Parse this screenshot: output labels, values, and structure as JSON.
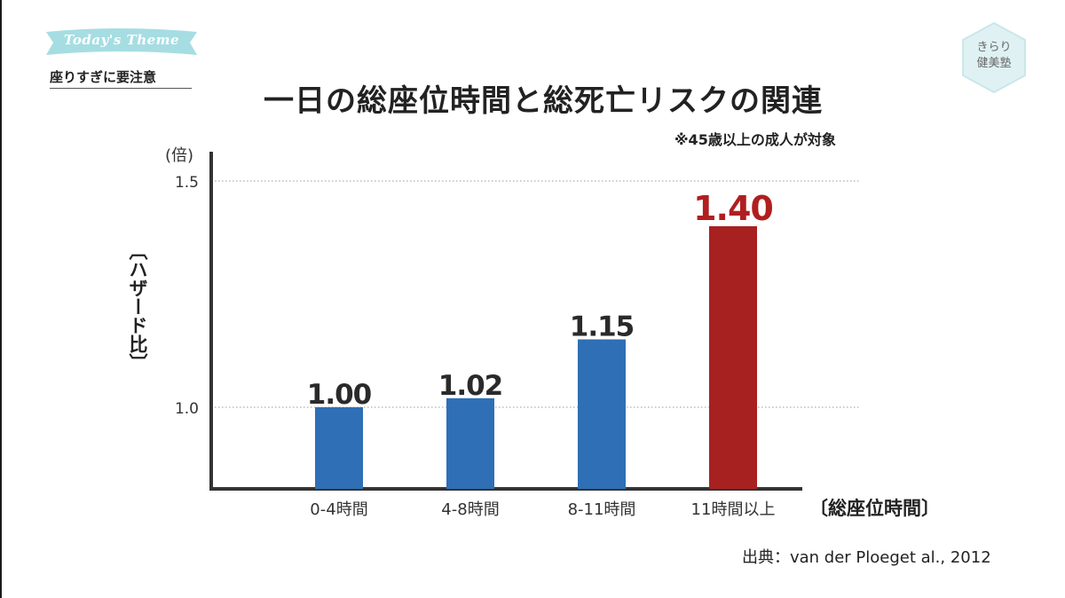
{
  "badge": {
    "title": "Today's Theme",
    "subtitle": "座りすぎに要注意"
  },
  "logo": {
    "line1": "きらり",
    "line2": "健美塾"
  },
  "title": "一日の総座位時間と総死亡リスクの関連",
  "note": "※45歳以上の成人が対象",
  "source": "出典：van der Ploeget al., 2012",
  "colors": {
    "bar_default": "#2f6fb5",
    "bar_highlight": "#a82121",
    "label_highlight": "#b01f1f",
    "axis": "#333333",
    "grid": "#9a9a9a",
    "ribbon": "#a6dde2",
    "logo": "#dff1f3"
  },
  "chart_data": {
    "type": "bar",
    "categories": [
      "0-4時間",
      "4-8時間",
      "8-11時間",
      "11時間以上"
    ],
    "values": [
      1.0,
      1.02,
      1.15,
      1.4
    ],
    "value_labels": [
      "1.00",
      "1.02",
      "1.15",
      "1.40"
    ],
    "highlight_index": 3,
    "ylabel": "〔ハザード比〕",
    "yunit": "(倍)",
    "xlabel": "〔総座位時間〕",
    "yticks": [
      1.0,
      1.5
    ],
    "ytick_labels": [
      "1.0",
      "1.5"
    ],
    "ylim": [
      0.82,
      1.5
    ],
    "grid": "horizontal-dotted"
  }
}
